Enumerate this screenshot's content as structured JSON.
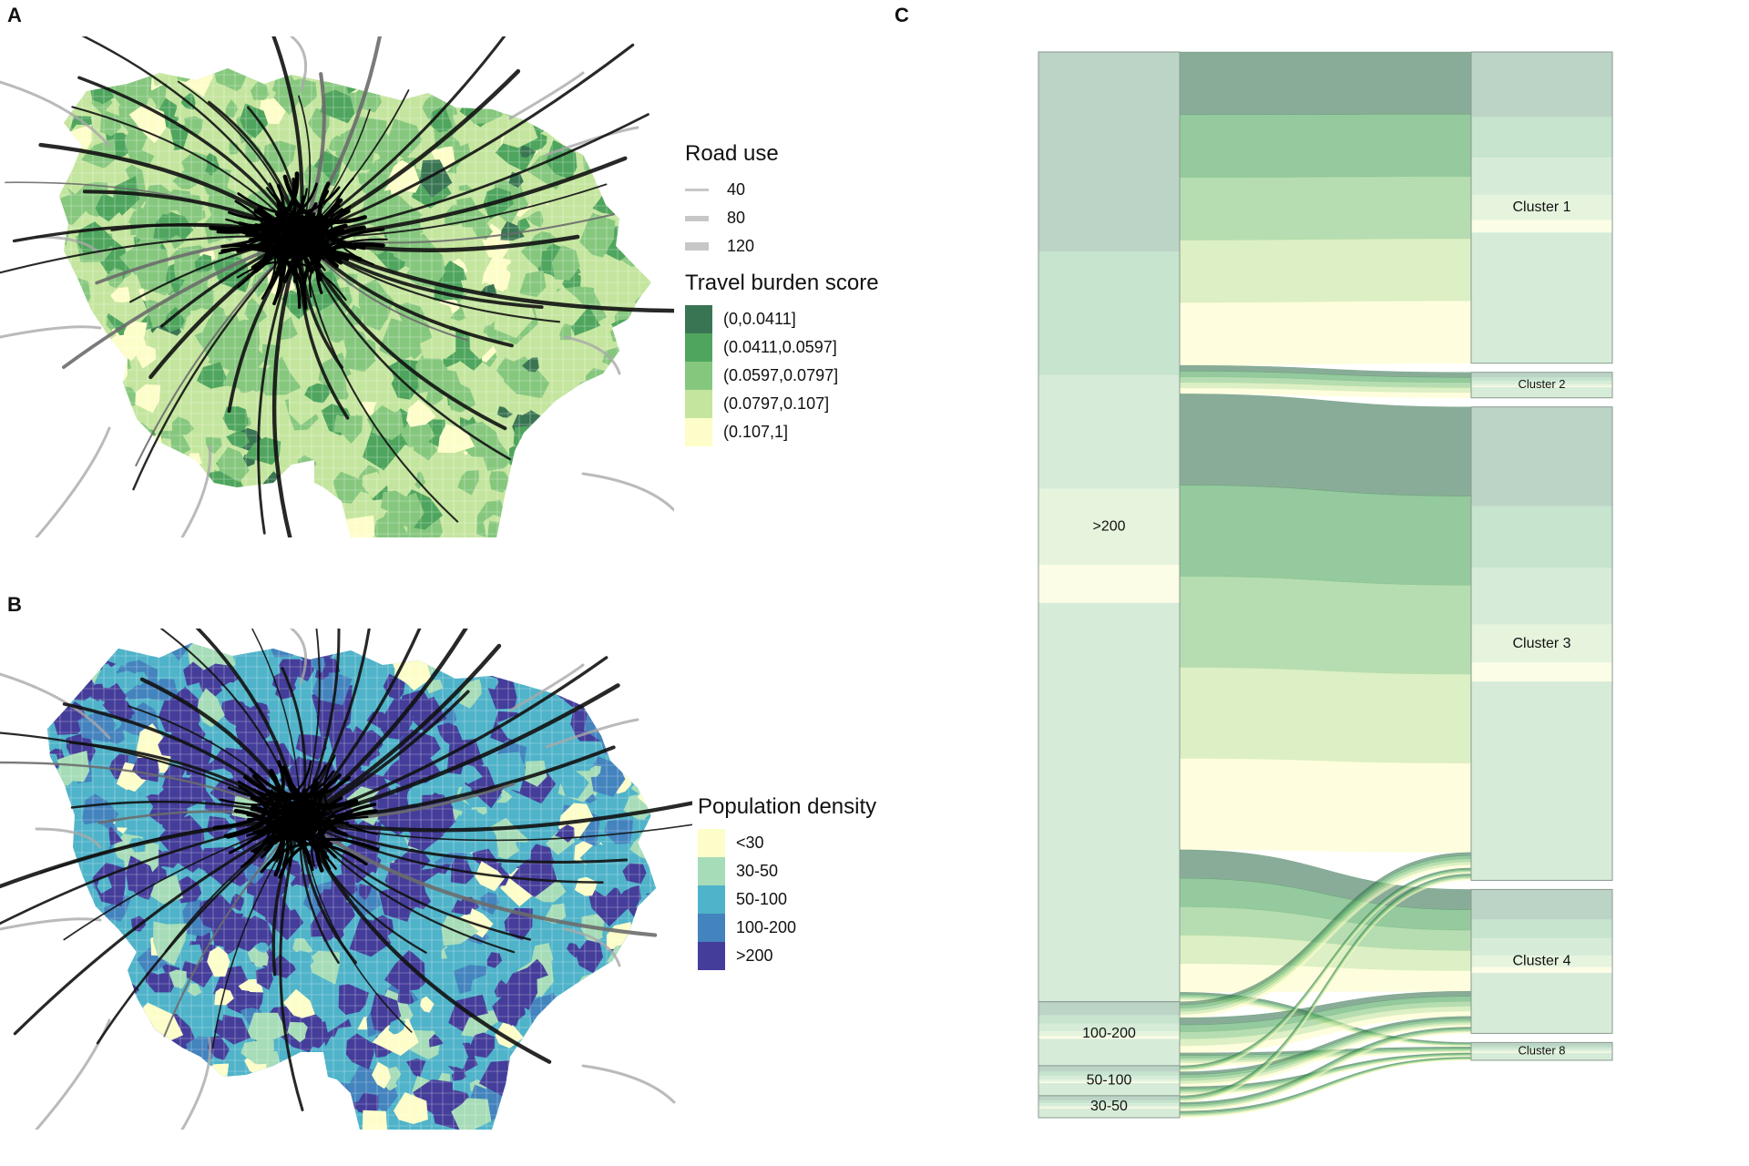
{
  "panels": {
    "a": {
      "label": "A"
    },
    "b": {
      "label": "B"
    },
    "c": {
      "label": "C"
    }
  },
  "legend_a": {
    "road_title": "Road use",
    "road_items": [
      {
        "label": "40",
        "width": 3
      },
      {
        "label": "80",
        "width": 6
      },
      {
        "label": "120",
        "width": 9
      }
    ],
    "burden_title": "Travel burden score",
    "burden_items": [
      {
        "label": "(0,0.0411]",
        "color": "#3a7553"
      },
      {
        "label": "(0.0411,0.0597]",
        "color": "#4fa55e"
      },
      {
        "label": "(0.0597,0.0797]",
        "color": "#86c77e"
      },
      {
        "label": "(0.0797,0.107]",
        "color": "#c4e59e"
      },
      {
        "label": "(0.107,1]",
        "color": "#fdfdc9"
      }
    ]
  },
  "legend_b": {
    "title": "Population density",
    "items": [
      {
        "label": "<30",
        "color": "#fdfdc9"
      },
      {
        "label": "30-50",
        "color": "#a6dcb8"
      },
      {
        "label": "50-100",
        "color": "#4fb3c9"
      },
      {
        "label": "100-200",
        "color": "#4383be"
      },
      {
        "label": ">200",
        "color": "#443d9a"
      }
    ]
  },
  "chart_data": {
    "type": "alluvial",
    "left_axis": [
      {
        "label": ">200",
        "share": 0.8912
      },
      {
        "label": "100-200",
        "share": 0.06
      },
      {
        "label": "50-100",
        "share": 0.0282
      },
      {
        "label": "30-50",
        "share": 0.0206
      }
    ],
    "right_axis": [
      {
        "label": "Cluster 1",
        "share": 0.3024
      },
      {
        "label": "Cluster 2",
        "share": 0.0248
      },
      {
        "label": "Cluster 3",
        "share": 0.4599
      },
      {
        "label": "Cluster 4",
        "share": 0.1398
      },
      {
        "label": "Cluster 8",
        "share": 0.0173
      }
    ],
    "burden_colors": [
      "#3a7553",
      "#4fa55e",
      "#86c77e",
      "#c4e59e",
      "#fdfdc9"
    ]
  }
}
